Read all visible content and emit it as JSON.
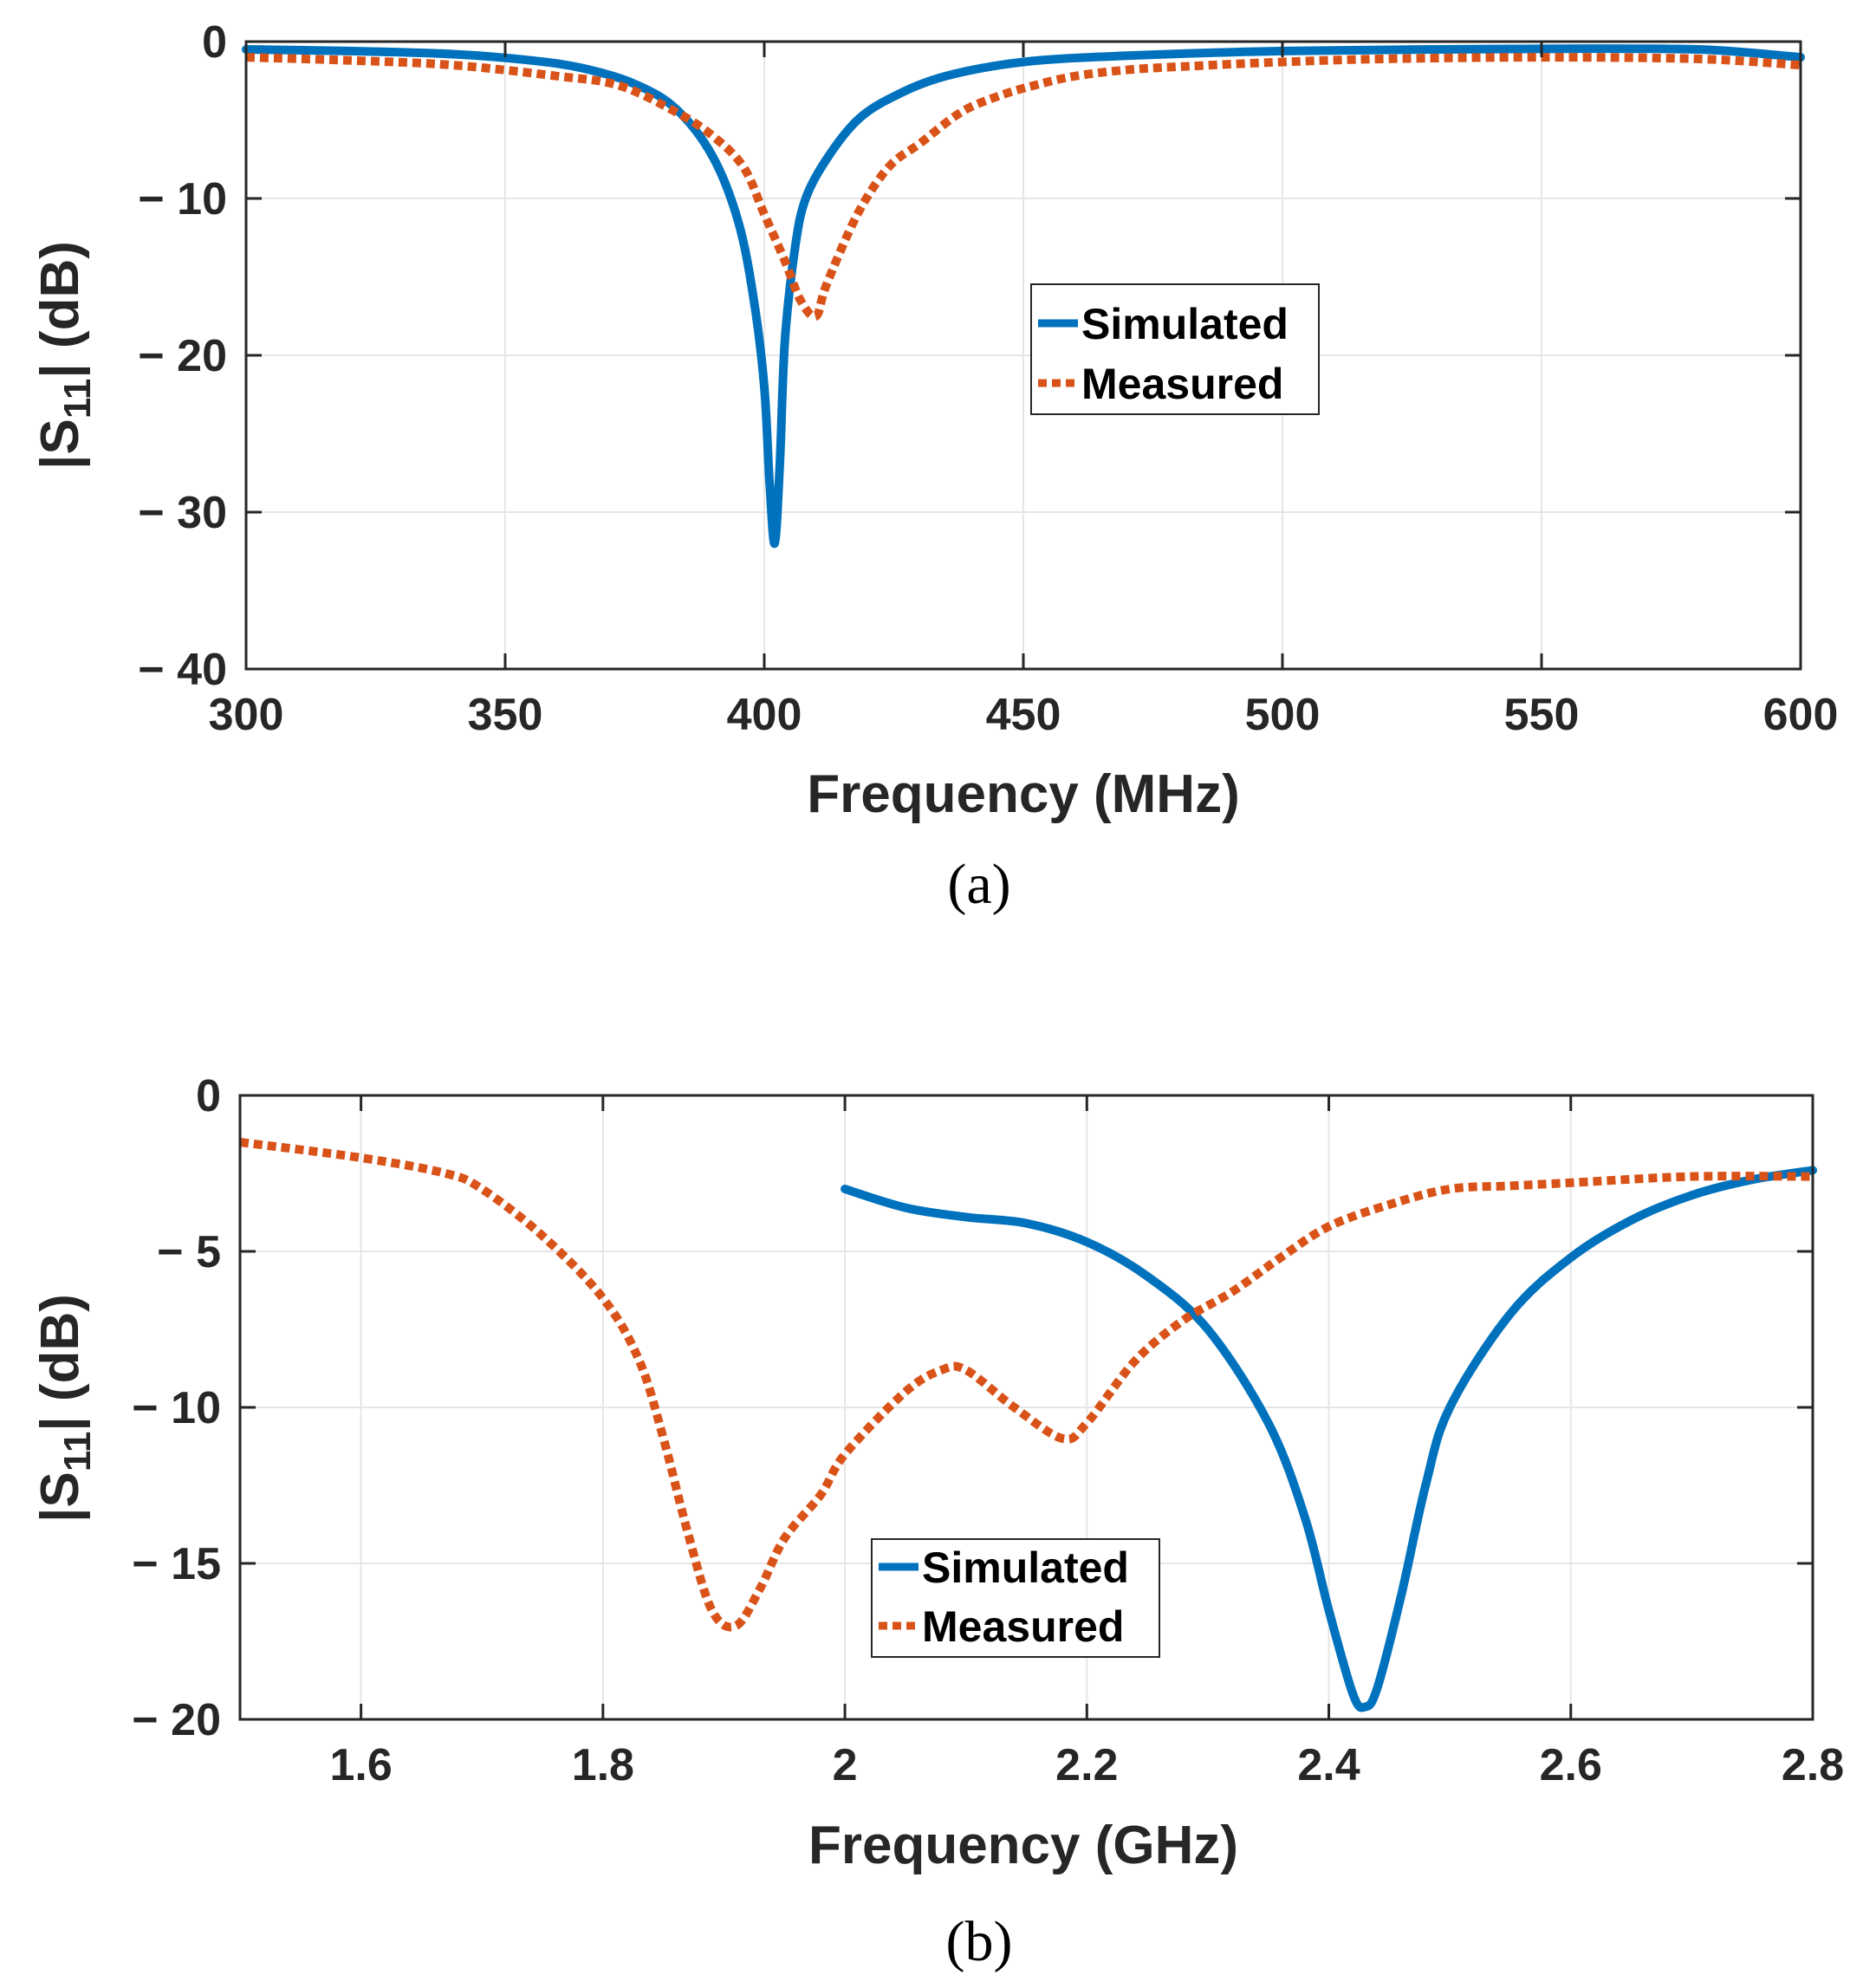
{
  "colors": {
    "simulated": "#0072BD",
    "measured": "#D95319"
  },
  "chart_data": [
    {
      "type": "line",
      "panel_label": "(a)",
      "xlabel": "Frequency (MHz)",
      "ylabel": "|S11| (dB)",
      "ylabel_main": "|S",
      "ylabel_sub": "11",
      "ylabel_tail": "| (dB)",
      "xlim": [
        300,
        600
      ],
      "ylim": [
        -40,
        0
      ],
      "xticks": [
        300,
        350,
        400,
        450,
        500,
        550,
        600
      ],
      "xtick_labels": [
        "300",
        "350",
        "400",
        "450",
        "500",
        "550",
        "600"
      ],
      "yticks": [
        0,
        -10,
        -20,
        -30,
        -40
      ],
      "ytick_labels": [
        "0",
        "− 10",
        "− 20",
        "− 30",
        "− 40"
      ],
      "grid": true,
      "legend": {
        "entries": [
          "Simulated",
          "Measured"
        ],
        "position": "center-right"
      },
      "series": [
        {
          "name": "Simulated",
          "style": "solid",
          "x": [
            300,
            320,
            340,
            355,
            365,
            375,
            383,
            390,
            395,
            398,
            400,
            401,
            402,
            403,
            404,
            406,
            408,
            412,
            418,
            425,
            435,
            450,
            470,
            500,
            530,
            560,
            580,
            590,
            600
          ],
          "y": [
            -0.5,
            -0.6,
            -0.8,
            -1.2,
            -1.7,
            -2.7,
            -4.3,
            -7.3,
            -11.5,
            -16.5,
            -22,
            -28,
            -32,
            -27,
            -19,
            -13,
            -10,
            -7.5,
            -5.0,
            -3.5,
            -2.2,
            -1.3,
            -0.9,
            -0.6,
            -0.5,
            -0.45,
            -0.5,
            -0.7,
            -1.0
          ]
        },
        {
          "name": "Measured",
          "style": "dotted",
          "x": [
            300,
            320,
            340,
            360,
            372,
            383,
            390,
            396,
            400,
            404,
            407,
            410,
            412,
            418,
            424,
            430,
            438,
            445,
            452,
            460,
            470,
            480,
            500,
            520,
            550,
            580,
            600
          ],
          "y": [
            -1.0,
            -1.2,
            -1.5,
            -2.2,
            -2.8,
            -4.5,
            -6.0,
            -8.0,
            -11.0,
            -14.0,
            -16.5,
            -17.5,
            -15.5,
            -11.0,
            -8.0,
            -6.5,
            -4.5,
            -3.5,
            -2.8,
            -2.2,
            -1.8,
            -1.6,
            -1.3,
            -1.1,
            -1.0,
            -1.1,
            -1.5
          ]
        }
      ]
    },
    {
      "type": "line",
      "panel_label": "(b)",
      "xlabel": "Frequency (GHz)",
      "ylabel": "|S11| (dB)",
      "ylabel_main": "|S",
      "ylabel_sub": "11",
      "ylabel_tail": "| (dB)",
      "xlim": [
        1.5,
        2.8
      ],
      "ylim": [
        -20,
        0
      ],
      "xticks": [
        1.6,
        1.8,
        2.0,
        2.2,
        2.4,
        2.6,
        2.8
      ],
      "xtick_labels": [
        "1.6",
        "1.8",
        "2",
        "2.2",
        "2.4",
        "2.6",
        "2.8"
      ],
      "yticks": [
        0,
        -5,
        -10,
        -15,
        -20
      ],
      "ytick_labels": [
        "0",
        "− 5",
        "− 10",
        "− 15",
        "− 20"
      ],
      "grid": true,
      "legend": {
        "entries": [
          "Simulated",
          "Measured"
        ],
        "position": "bottom-center"
      },
      "series": [
        {
          "name": "Simulated",
          "style": "solid",
          "x": [
            2.0,
            2.05,
            2.1,
            2.15,
            2.2,
            2.25,
            2.3,
            2.35,
            2.38,
            2.4,
            2.42,
            2.43,
            2.44,
            2.46,
            2.48,
            2.5,
            2.55,
            2.6,
            2.65,
            2.7,
            2.75,
            2.8
          ],
          "y": [
            -3.0,
            -3.6,
            -3.9,
            -4.1,
            -4.7,
            -5.8,
            -7.5,
            -10.5,
            -13.5,
            -16.5,
            -19.2,
            -19.6,
            -19.0,
            -16.0,
            -12.5,
            -10.0,
            -7.0,
            -5.2,
            -4.0,
            -3.2,
            -2.7,
            -2.4
          ]
        },
        {
          "name": "Measured",
          "style": "dotted",
          "x": [
            1.5,
            1.6,
            1.67,
            1.7,
            1.75,
            1.8,
            1.83,
            1.85,
            1.87,
            1.89,
            1.91,
            1.93,
            1.95,
            1.98,
            2.0,
            2.05,
            2.08,
            2.1,
            2.14,
            2.18,
            2.2,
            2.24,
            2.28,
            2.32,
            2.36,
            2.4,
            2.45,
            2.5,
            2.55,
            2.6,
            2.7,
            2.8
          ],
          "y": [
            -1.5,
            -2.0,
            -2.5,
            -3.0,
            -4.5,
            -6.5,
            -8.5,
            -11.0,
            -14.0,
            -16.5,
            -17.0,
            -15.8,
            -14.2,
            -12.8,
            -11.5,
            -9.5,
            -8.8,
            -8.8,
            -10.0,
            -11.0,
            -10.5,
            -8.5,
            -7.2,
            -6.3,
            -5.2,
            -4.2,
            -3.5,
            -3.0,
            -2.9,
            -2.8,
            -2.6,
            -2.6
          ]
        }
      ]
    }
  ]
}
